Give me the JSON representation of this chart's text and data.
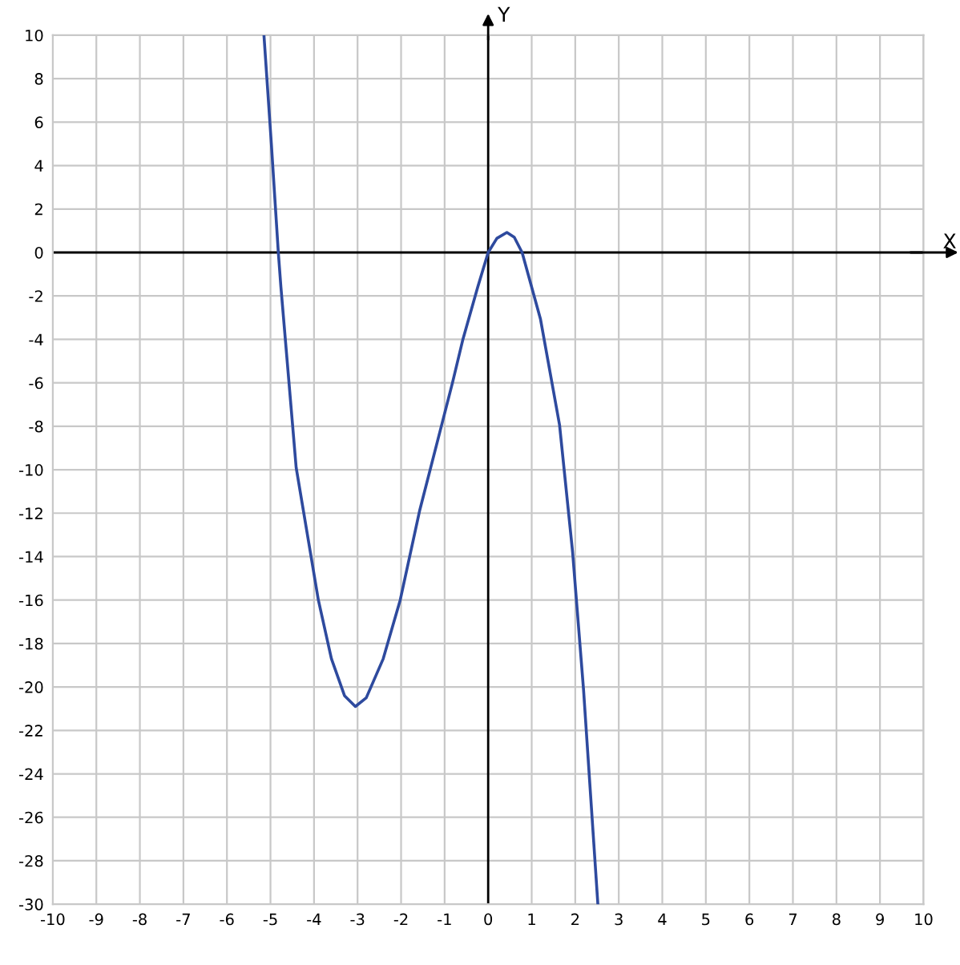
{
  "chart_data": {
    "type": "line",
    "xlabel": "X",
    "ylabel": "Y",
    "series": [
      {
        "color": "#2e4a9e",
        "x": [
          -5.15,
          -4.98,
          -4.82,
          -4.76,
          -4.41,
          -3.9,
          -3.6,
          -3.3,
          -3.05,
          -2.8,
          -2.41,
          -2.02,
          -1.57,
          -1.05,
          -0.82,
          -0.58,
          -0.24,
          0,
          0.2,
          0.43,
          0.6,
          0.78,
          1.2,
          1.64,
          1.94,
          2.19,
          2.52
        ],
        "values": [
          10,
          5,
          0,
          -1.6,
          -9.9,
          -16,
          -18.7,
          -20.4,
          -20.9,
          -20.5,
          -18.7,
          -16,
          -11.85,
          -7.8,
          -6,
          -4,
          -1.6,
          0,
          0.65,
          0.92,
          0.7,
          0,
          -3.05,
          -7.94,
          -13.8,
          -20.1,
          -30
        ]
      }
    ],
    "xlim": [
      -10,
      10
    ],
    "ylim": [
      -30,
      10
    ],
    "xticks": [
      -10,
      -9,
      -8,
      -7,
      -6,
      -5,
      -4,
      -3,
      -2,
      -1,
      0,
      1,
      2,
      3,
      4,
      5,
      6,
      7,
      8,
      9,
      10
    ],
    "yticks": [
      -30,
      -28,
      -26,
      -24,
      -22,
      -20,
      -18,
      -16,
      -14,
      -12,
      -10,
      -8,
      -6,
      -4,
      -2,
      0,
      2,
      4,
      6,
      8,
      10
    ],
    "grid": true,
    "marker": "none",
    "line_style": "solid"
  }
}
